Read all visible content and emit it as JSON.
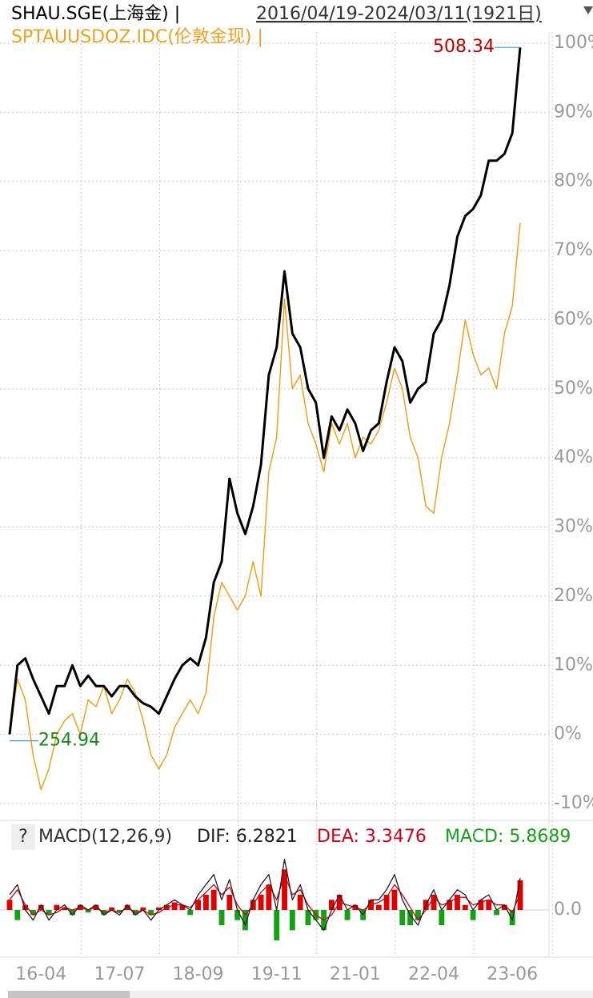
{
  "chart_data": [
    {
      "type": "line",
      "subtitle": "2016/04/19-2024/03/11(1921日)",
      "max_label": "508.34",
      "min_label": "254.94",
      "ylim": [
        -10,
        100
      ],
      "yticks": [
        {
          "value": -10,
          "label": "-10%"
        },
        {
          "value": 0,
          "label": "0%"
        },
        {
          "value": 10,
          "label": "10%"
        },
        {
          "value": 20,
          "label": "20%"
        },
        {
          "value": 30,
          "label": "30%"
        },
        {
          "value": 40,
          "label": "40%"
        },
        {
          "value": 50,
          "label": "50%"
        },
        {
          "value": 60,
          "label": "60%"
        },
        {
          "value": 70,
          "label": "70%"
        },
        {
          "value": 80,
          "label": "80%"
        },
        {
          "value": 90,
          "label": "90%"
        },
        {
          "value": 100,
          "label": "100%"
        }
      ],
      "grid": true,
      "series": [
        {
          "name": "SHAU.SGE(上海金) |",
          "color": "#000000",
          "values": [
            0,
            10,
            11,
            8,
            5.5,
            3,
            7,
            7,
            10,
            7,
            8.5,
            7,
            7,
            5.5,
            7,
            7,
            5.5,
            4.5,
            4,
            3,
            5.5,
            8,
            10,
            11,
            10,
            14,
            22,
            25,
            37,
            32,
            29,
            33,
            39,
            52,
            56,
            67,
            58,
            56,
            50,
            48,
            40,
            46,
            44,
            47,
            45,
            41,
            44,
            45,
            51,
            56,
            54,
            48,
            50,
            51,
            58,
            60,
            65,
            72,
            75,
            76,
            78,
            83,
            83,
            84,
            87,
            99.4
          ]
        },
        {
          "name": "SPTAUUSDOZ.IDC(伦敦金现) |",
          "color": "#f0a020",
          "values": [
            0,
            8,
            5,
            -3,
            -8,
            -5,
            0,
            2,
            3,
            0,
            5,
            4,
            7,
            3,
            5,
            8,
            6,
            2,
            -3,
            -5,
            -3,
            1,
            3,
            5,
            3,
            6,
            17,
            22,
            20,
            18,
            20,
            25,
            20,
            38,
            43,
            63,
            50,
            52,
            45,
            42,
            38,
            45,
            42,
            45,
            40,
            43,
            42,
            44,
            48,
            53,
            50,
            43,
            40,
            33,
            32,
            40,
            45,
            52,
            60,
            55,
            52,
            53,
            50,
            58,
            62,
            74
          ]
        }
      ]
    },
    {
      "type": "macd",
      "help": "?",
      "title": "MACD(12,26,9)",
      "categories": [
        null,
        null,
        null,
        null,
        "16-04",
        null,
        null,
        null,
        null,
        null,
        null,
        null,
        null,
        null,
        "17-07",
        null,
        null,
        null,
        null,
        null,
        null,
        null,
        null,
        null,
        "18-09",
        null,
        null,
        null,
        null,
        null,
        null,
        null,
        null,
        null,
        "19-11",
        null,
        null,
        null,
        null,
        null,
        null,
        null,
        null,
        null,
        "21-01",
        null,
        null,
        null,
        null,
        null,
        null,
        null,
        null,
        null,
        "22-04",
        null,
        null,
        null,
        null,
        null,
        null,
        null,
        null,
        null,
        "23-06",
        null
      ],
      "ylim": [
        -9,
        12
      ],
      "yticks": [
        {
          "value": 0,
          "label": "0.0"
        }
      ],
      "series": [
        {
          "name": "DIF: 6.2821",
          "color": "#222222",
          "values": [
            3,
            5,
            0,
            -2,
            1,
            -2,
            0,
            1,
            -1,
            1,
            0,
            1,
            -1,
            0,
            -1,
            1,
            -1,
            0,
            -2,
            0,
            1,
            2,
            1,
            0,
            3,
            5,
            7,
            2,
            6,
            0,
            -3,
            2,
            5,
            7,
            0,
            10,
            2,
            5,
            0,
            -2,
            -4,
            0,
            3,
            0,
            1,
            -1,
            2,
            2,
            4,
            7,
            2,
            -1,
            -3,
            1,
            4,
            0,
            2,
            4,
            3,
            0,
            2,
            3,
            0,
            1,
            -2,
            6.2821
          ]
        },
        {
          "name": "DEA: 3.3476",
          "color": "#d0021b",
          "values": [
            2,
            4,
            1,
            -1,
            0,
            -1,
            -0.5,
            0.5,
            0,
            0.5,
            0,
            0.5,
            -0.5,
            0,
            -0.5,
            0.5,
            -0.5,
            0,
            -1,
            -0.5,
            0.5,
            1,
            1,
            0.5,
            2,
            3.5,
            5,
            3,
            4.5,
            1,
            -1,
            1,
            3.5,
            5,
            2,
            7,
            3,
            4,
            1,
            -1,
            -2,
            -1,
            1.5,
            1,
            0.5,
            0,
            1,
            1.5,
            2.5,
            5,
            3,
            0.5,
            -2,
            0,
            2.5,
            1,
            1.5,
            2.5,
            2.5,
            1,
            1.5,
            2,
            1,
            1,
            -0.5,
            3.3476
          ]
        },
        {
          "name": "MACD: 5.8689",
          "color": "#15a015",
          "up_color": "#e00000",
          "down_color": "#15a015",
          "values": [
            2,
            -2,
            1,
            -1,
            1,
            -1,
            1,
            0.5,
            -1,
            1,
            -0.5,
            1,
            -1,
            0.5,
            -0.5,
            1,
            -1,
            0.5,
            -1,
            0.5,
            1,
            1.5,
            1,
            -1,
            2,
            3,
            4,
            -3,
            3,
            -2,
            -4,
            2,
            3,
            5,
            -6,
            8,
            -4,
            3,
            -3,
            -2,
            -4,
            2,
            3,
            -2,
            1,
            -2,
            2,
            1,
            3,
            4,
            -3,
            -3,
            -2,
            2,
            3,
            -3,
            2,
            3,
            1,
            -2,
            2,
            2,
            -1,
            1,
            -3,
            5.8689
          ]
        }
      ]
    }
  ]
}
